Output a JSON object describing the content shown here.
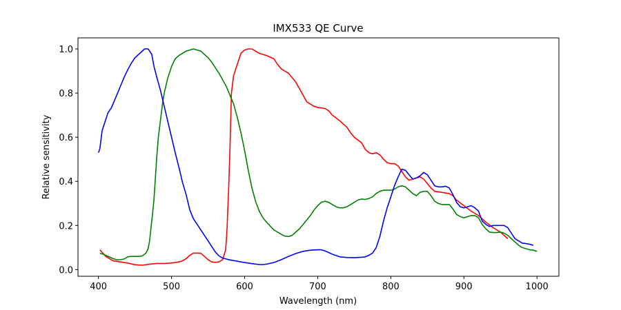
{
  "chart_data": {
    "type": "line",
    "title": "IMX533 QE Curve",
    "xlabel": "Wavelength (nm)",
    "ylabel": "Relative sensitivity",
    "xlim": [
      372,
      1030
    ],
    "ylim": [
      -0.03,
      1.05
    ],
    "xticks": [
      400,
      500,
      600,
      700,
      800,
      900,
      1000
    ],
    "xtick_labels": [
      "400",
      "500",
      "600",
      "700",
      "800",
      "900",
      "1000"
    ],
    "yticks": [
      0.0,
      0.2,
      0.4,
      0.6,
      0.8,
      1.0
    ],
    "ytick_labels": [
      "0.0",
      "0.2",
      "0.4",
      "0.6",
      "0.8",
      "1.0"
    ],
    "grid": false,
    "legend": "none",
    "series": [
      {
        "name": "red",
        "color": "#ff0000",
        "x": [
          402,
          410,
          420,
          430,
          440,
          450,
          460,
          470,
          480,
          490,
          500,
          505,
          510,
          515,
          520,
          525,
          530,
          535,
          540,
          545,
          550,
          555,
          560,
          565,
          570,
          574,
          575,
          576,
          578,
          580,
          582,
          585,
          590,
          595,
          600,
          605,
          610,
          615,
          620,
          630,
          640,
          645,
          650,
          660,
          665,
          670,
          675,
          680,
          685,
          690,
          695,
          700,
          710,
          715,
          720,
          730,
          740,
          745,
          750,
          760,
          765,
          770,
          775,
          780,
          785,
          790,
          795,
          800,
          805,
          810,
          815,
          820,
          825,
          830,
          840,
          845,
          850,
          855,
          860,
          870,
          880,
          885,
          890,
          900,
          910,
          920,
          930,
          940,
          950,
          960
        ],
        "values": [
          0.09,
          0.06,
          0.04,
          0.035,
          0.03,
          0.022,
          0.02,
          0.025,
          0.028,
          0.028,
          0.03,
          0.032,
          0.035,
          0.04,
          0.05,
          0.065,
          0.075,
          0.075,
          0.074,
          0.06,
          0.045,
          0.035,
          0.033,
          0.035,
          0.045,
          0.09,
          0.13,
          0.19,
          0.35,
          0.55,
          0.8,
          0.88,
          0.93,
          0.98,
          0.995,
          1.0,
          1.0,
          0.99,
          0.98,
          0.97,
          0.955,
          0.93,
          0.91,
          0.89,
          0.87,
          0.85,
          0.82,
          0.79,
          0.76,
          0.75,
          0.74,
          0.735,
          0.73,
          0.72,
          0.7,
          0.675,
          0.645,
          0.62,
          0.6,
          0.575,
          0.545,
          0.53,
          0.525,
          0.53,
          0.52,
          0.5,
          0.485,
          0.48,
          0.48,
          0.47,
          0.445,
          0.42,
          0.405,
          0.41,
          0.42,
          0.41,
          0.39,
          0.37,
          0.355,
          0.35,
          0.345,
          0.335,
          0.315,
          0.29,
          0.265,
          0.245,
          0.215,
          0.19,
          0.17,
          0.14
        ]
      },
      {
        "name": "green",
        "color": "#008000",
        "x": [
          402,
          410,
          420,
          425,
          430,
          435,
          440,
          445,
          450,
          455,
          460,
          465,
          468,
          470,
          472,
          474,
          476,
          478,
          480,
          482,
          485,
          488,
          490,
          495,
          500,
          505,
          510,
          515,
          520,
          525,
          530,
          535,
          540,
          545,
          550,
          555,
          560,
          565,
          570,
          575,
          580,
          585,
          590,
          595,
          600,
          605,
          610,
          615,
          620,
          625,
          630,
          640,
          650,
          655,
          660,
          665,
          670,
          675,
          680,
          690,
          695,
          700,
          705,
          710,
          715,
          720,
          725,
          730,
          735,
          740,
          745,
          750,
          755,
          760,
          765,
          770,
          775,
          780,
          785,
          790,
          795,
          800,
          805,
          810,
          815,
          820,
          825,
          830,
          835,
          840,
          845,
          850,
          855,
          860,
          865,
          870,
          875,
          880,
          885,
          890,
          895,
          900,
          905,
          910,
          915,
          920,
          925,
          930,
          935,
          940,
          945,
          950,
          955,
          960,
          965,
          970,
          975,
          980,
          985,
          990,
          995,
          1000
        ],
        "values": [
          0.075,
          0.065,
          0.05,
          0.045,
          0.045,
          0.048,
          0.058,
          0.06,
          0.06,
          0.06,
          0.062,
          0.075,
          0.095,
          0.13,
          0.19,
          0.25,
          0.32,
          0.42,
          0.52,
          0.6,
          0.68,
          0.76,
          0.8,
          0.87,
          0.92,
          0.955,
          0.97,
          0.98,
          0.99,
          0.995,
          1.0,
          0.995,
          0.99,
          0.975,
          0.96,
          0.94,
          0.915,
          0.89,
          0.86,
          0.83,
          0.79,
          0.75,
          0.69,
          0.62,
          0.54,
          0.45,
          0.37,
          0.31,
          0.265,
          0.235,
          0.215,
          0.18,
          0.16,
          0.152,
          0.15,
          0.155,
          0.17,
          0.185,
          0.205,
          0.245,
          0.27,
          0.29,
          0.305,
          0.31,
          0.305,
          0.295,
          0.285,
          0.28,
          0.28,
          0.285,
          0.295,
          0.305,
          0.315,
          0.32,
          0.318,
          0.322,
          0.33,
          0.345,
          0.355,
          0.36,
          0.36,
          0.36,
          0.365,
          0.375,
          0.38,
          0.375,
          0.36,
          0.345,
          0.335,
          0.35,
          0.355,
          0.355,
          0.335,
          0.31,
          0.3,
          0.295,
          0.295,
          0.295,
          0.275,
          0.25,
          0.24,
          0.235,
          0.24,
          0.245,
          0.245,
          0.235,
          0.205,
          0.185,
          0.17,
          0.168,
          0.168,
          0.17,
          0.165,
          0.155,
          0.14,
          0.125,
          0.11,
          0.1,
          0.095,
          0.09,
          0.088,
          0.083
        ]
      },
      {
        "name": "blue",
        "color": "#0000ff",
        "x": [
          400,
          402,
          405,
          410,
          413,
          418,
          425,
          430,
          435,
          440,
          445,
          450,
          455,
          460,
          463,
          468,
          473,
          476,
          480,
          485,
          490,
          495,
          500,
          505,
          510,
          515,
          520,
          525,
          530,
          535,
          540,
          545,
          550,
          555,
          560,
          565,
          570,
          575,
          580,
          590,
          600,
          610,
          620,
          625,
          630,
          640,
          650,
          660,
          670,
          680,
          690,
          700,
          705,
          710,
          720,
          730,
          740,
          750,
          760,
          765,
          770,
          775,
          780,
          785,
          790,
          795,
          800,
          805,
          810,
          815,
          820,
          825,
          830,
          835,
          840,
          845,
          850,
          855,
          860,
          865,
          870,
          875,
          880,
          885,
          890,
          895,
          900,
          905,
          910,
          915,
          920,
          925,
          930,
          935,
          940,
          945,
          950,
          955,
          960,
          965,
          970,
          975,
          980,
          985,
          990,
          995
        ],
        "values": [
          0.53,
          0.55,
          0.63,
          0.68,
          0.71,
          0.735,
          0.79,
          0.83,
          0.87,
          0.905,
          0.935,
          0.96,
          0.975,
          0.99,
          1.0,
          1.0,
          0.975,
          0.92,
          0.87,
          0.81,
          0.74,
          0.67,
          0.6,
          0.53,
          0.465,
          0.395,
          0.34,
          0.27,
          0.23,
          0.205,
          0.18,
          0.155,
          0.13,
          0.105,
          0.08,
          0.062,
          0.052,
          0.048,
          0.044,
          0.038,
          0.032,
          0.027,
          0.023,
          0.023,
          0.025,
          0.032,
          0.045,
          0.06,
          0.073,
          0.083,
          0.088,
          0.09,
          0.09,
          0.085,
          0.07,
          0.058,
          0.055,
          0.054,
          0.056,
          0.058,
          0.065,
          0.075,
          0.1,
          0.15,
          0.22,
          0.28,
          0.33,
          0.38,
          0.42,
          0.455,
          0.45,
          0.43,
          0.41,
          0.415,
          0.425,
          0.44,
          0.43,
          0.405,
          0.38,
          0.375,
          0.375,
          0.378,
          0.37,
          0.34,
          0.305,
          0.285,
          0.28,
          0.285,
          0.29,
          0.28,
          0.265,
          0.22,
          0.205,
          0.195,
          0.2,
          0.2,
          0.2,
          0.2,
          0.19,
          0.165,
          0.14,
          0.13,
          0.12,
          0.118,
          0.115,
          0.11
        ]
      }
    ]
  }
}
